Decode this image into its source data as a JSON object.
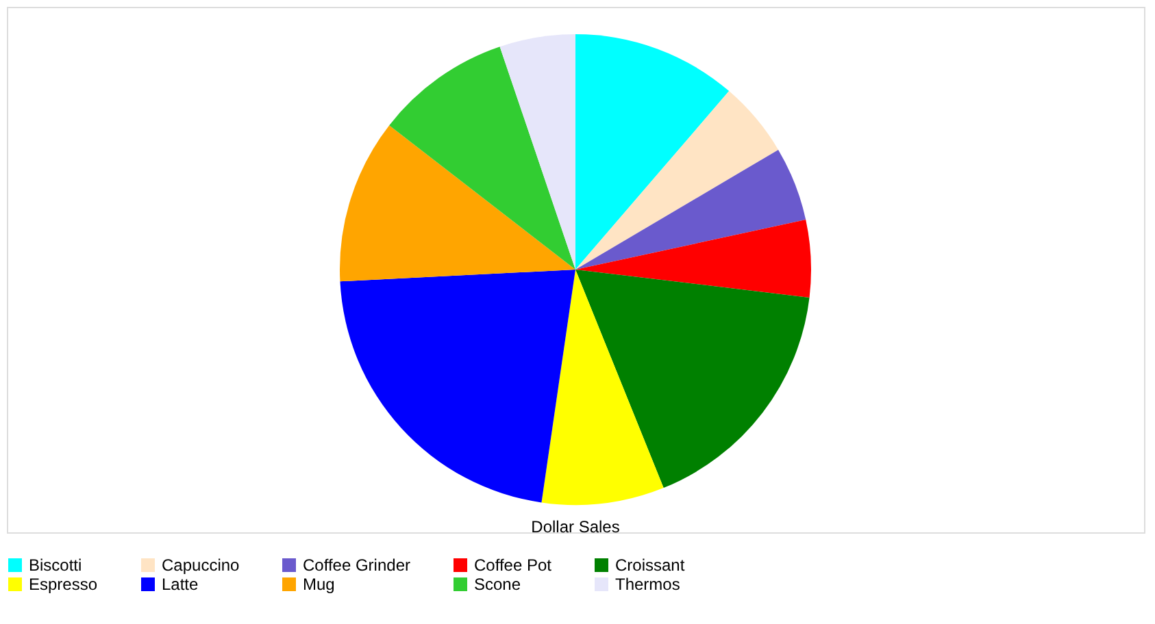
{
  "chart_data": {
    "type": "pie",
    "title": "Dollar Sales",
    "categories": [
      "Biscotti",
      "Capuccino",
      "Coffee Grinder",
      "Coffee Pot",
      "Croissant",
      "Espresso",
      "Latte",
      "Mug",
      "Scone",
      "Thermos"
    ],
    "values": [
      11.3,
      5.2,
      5.1,
      5.3,
      17.0,
      8.4,
      21.9,
      11.3,
      9.3,
      5.2
    ],
    "colors": [
      "#00ffff",
      "#ffe4c4",
      "#6a5acd",
      "#ff0000",
      "#008000",
      "#ffff00",
      "#0000ff",
      "#ffa500",
      "#32cd32",
      "#e6e6fa"
    ],
    "legend": "bottom"
  }
}
